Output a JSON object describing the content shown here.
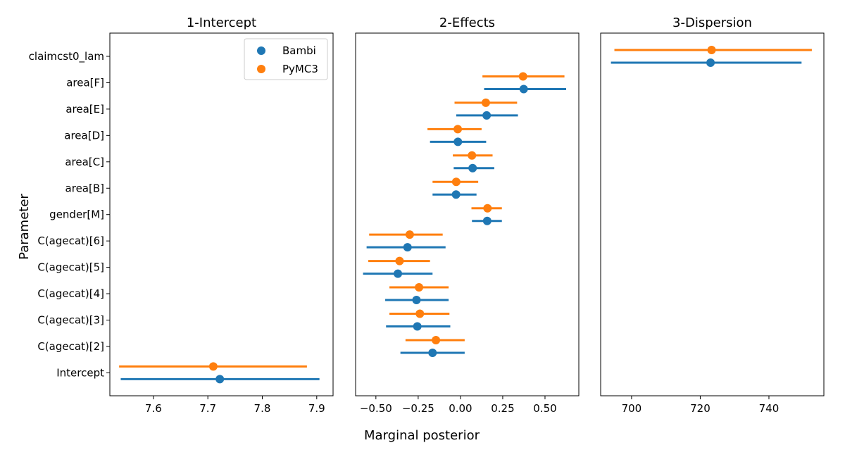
{
  "chart_data": {
    "type": "forest",
    "xlabel": "Marginal posterior",
    "ylabel": "Parameter",
    "parameters": [
      "claimcst0_lam",
      "area[F]",
      "area[E]",
      "area[D]",
      "area[C]",
      "area[B]",
      "gender[M]",
      "C(agecat)[6]",
      "C(agecat)[5]",
      "C(agecat)[4]",
      "C(agecat)[3]",
      "C(agecat)[2]",
      "Intercept"
    ],
    "legend": {
      "placement": "upper-right of first panel",
      "entries": [
        {
          "name": "Bambi",
          "color": "#1f77b4"
        },
        {
          "name": "PyMC3",
          "color": "#ff7f0e"
        }
      ]
    },
    "panels": [
      {
        "title": "1-Intercept",
        "xlim": [
          7.52,
          7.93
        ],
        "xticks": [
          7.6,
          7.7,
          7.8,
          7.9
        ],
        "xtick_labels": [
          "7.6",
          "7.7",
          "7.8",
          "7.9"
        ],
        "series": [
          {
            "name": "Bambi",
            "points": [
              {
                "param": "Intercept",
                "mean": 7.722,
                "low": 7.54,
                "high": 7.905
              }
            ]
          },
          {
            "name": "PyMC3",
            "points": [
              {
                "param": "Intercept",
                "mean": 7.71,
                "low": 7.537,
                "high": 7.882
              }
            ]
          }
        ]
      },
      {
        "title": "2-Effects",
        "xlim": [
          -0.62,
          0.7
        ],
        "xticks": [
          -0.5,
          -0.25,
          0.0,
          0.25,
          0.5
        ],
        "xtick_labels": [
          "−0.50",
          "−0.25",
          "0.00",
          "0.25",
          "0.50"
        ],
        "series": [
          {
            "name": "Bambi",
            "points": [
              {
                "param": "area[F]",
                "mean": 0.374,
                "low": 0.14,
                "high": 0.625
              },
              {
                "param": "area[E]",
                "mean": 0.155,
                "low": -0.025,
                "high": 0.34
              },
              {
                "param": "area[D]",
                "mean": -0.015,
                "low": -0.18,
                "high": 0.152
              },
              {
                "param": "area[C]",
                "mean": 0.072,
                "low": -0.04,
                "high": 0.2
              },
              {
                "param": "area[B]",
                "mean": -0.026,
                "low": -0.165,
                "high": 0.095
              },
              {
                "param": "gender[M]",
                "mean": 0.158,
                "low": 0.068,
                "high": 0.245
              },
              {
                "param": "C(agecat)[6]",
                "mean": -0.313,
                "low": -0.555,
                "high": -0.088
              },
              {
                "param": "C(agecat)[5]",
                "mean": -0.37,
                "low": -0.576,
                "high": -0.165
              },
              {
                "param": "C(agecat)[4]",
                "mean": -0.26,
                "low": -0.445,
                "high": -0.07
              },
              {
                "param": "C(agecat)[3]",
                "mean": -0.255,
                "low": -0.44,
                "high": -0.06
              },
              {
                "param": "C(agecat)[2]",
                "mean": -0.165,
                "low": -0.355,
                "high": 0.025
              }
            ]
          },
          {
            "name": "PyMC3",
            "points": [
              {
                "param": "area[F]",
                "mean": 0.37,
                "low": 0.13,
                "high": 0.615
              },
              {
                "param": "area[E]",
                "mean": 0.15,
                "low": -0.035,
                "high": 0.335
              },
              {
                "param": "area[D]",
                "mean": -0.016,
                "low": -0.195,
                "high": 0.125
              },
              {
                "param": "area[C]",
                "mean": 0.068,
                "low": -0.045,
                "high": 0.19
              },
              {
                "param": "area[B]",
                "mean": -0.025,
                "low": -0.165,
                "high": 0.105
              },
              {
                "param": "gender[M]",
                "mean": 0.16,
                "low": 0.065,
                "high": 0.245
              },
              {
                "param": "C(agecat)[6]",
                "mean": -0.3,
                "low": -0.54,
                "high": -0.105
              },
              {
                "param": "C(agecat)[5]",
                "mean": -0.36,
                "low": -0.545,
                "high": -0.18
              },
              {
                "param": "C(agecat)[4]",
                "mean": -0.245,
                "low": -0.42,
                "high": -0.07
              },
              {
                "param": "C(agecat)[3]",
                "mean": -0.24,
                "low": -0.42,
                "high": -0.065
              },
              {
                "param": "C(agecat)[2]",
                "mean": -0.145,
                "low": -0.325,
                "high": 0.025
              }
            ]
          }
        ]
      },
      {
        "title": "3-Dispersion",
        "xlim": [
          691,
          756
        ],
        "xticks": [
          700,
          720,
          740
        ],
        "xtick_labels": [
          "700",
          "720",
          "740"
        ],
        "series": [
          {
            "name": "Bambi",
            "points": [
              {
                "param": "claimcst0_lam",
                "mean": 723,
                "low": 694,
                "high": 749.5
              }
            ]
          },
          {
            "name": "PyMC3",
            "points": [
              {
                "param": "claimcst0_lam",
                "mean": 723.3,
                "low": 695,
                "high": 752.5
              }
            ]
          }
        ]
      }
    ]
  }
}
